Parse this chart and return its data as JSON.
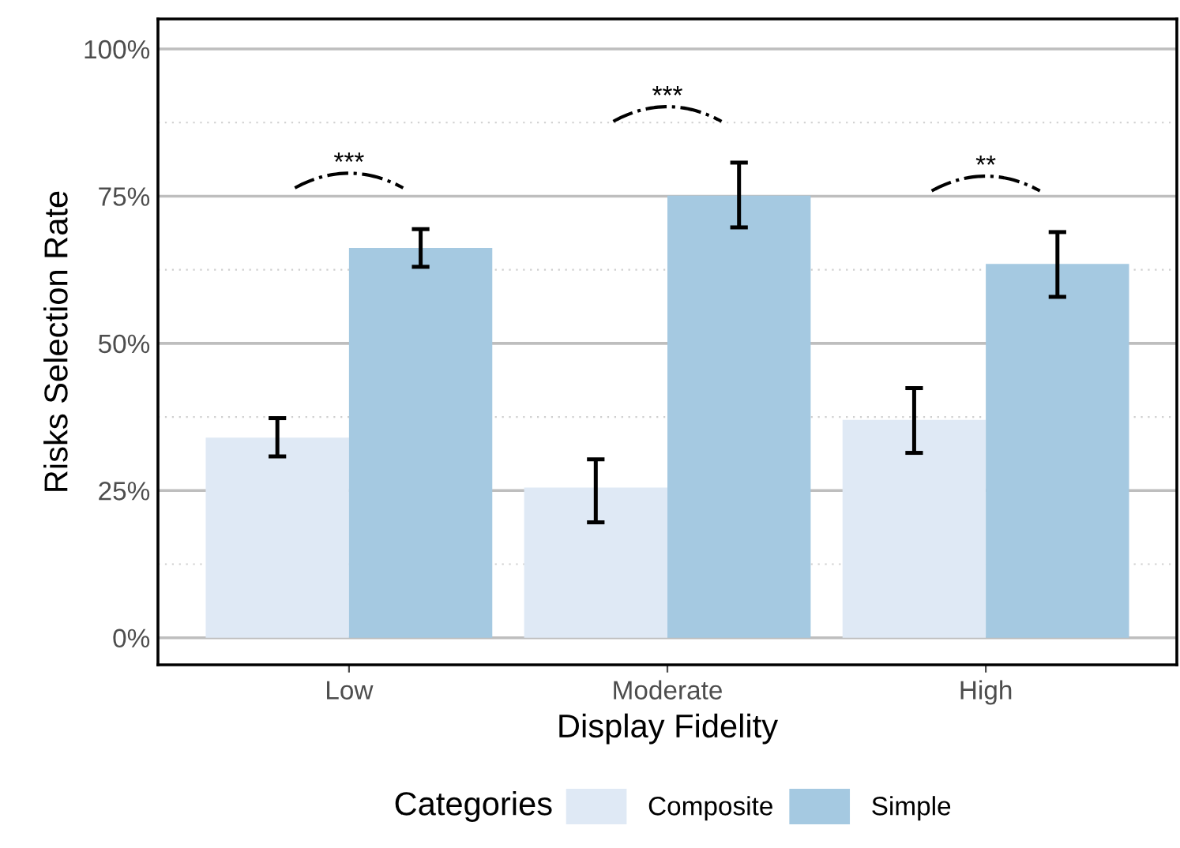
{
  "chart_data": {
    "type": "bar",
    "xlabel": "Display Fidelity",
    "ylabel": "Risks Selection Rate",
    "legend_title": "Categories",
    "categories": [
      "Low",
      "Moderate",
      "High"
    ],
    "series": [
      {
        "name": "Composite",
        "color": "#dfe9f5",
        "values": [
          34.0,
          25.5,
          37.0
        ],
        "errors": [
          [
            30.8,
            37.3
          ],
          [
            19.6,
            30.3
          ],
          [
            31.4,
            42.4
          ]
        ]
      },
      {
        "name": "Simple",
        "color": "#a5c9e1",
        "values": [
          66.2,
          75.1,
          63.5
        ],
        "errors": [
          [
            63.0,
            69.4
          ],
          [
            69.7,
            80.7
          ],
          [
            57.9,
            68.9
          ]
        ]
      }
    ],
    "ylim": [
      -4.6,
      105.1
    ],
    "yticks": [
      {
        "value": 0,
        "label": "0%"
      },
      {
        "value": 12.5,
        "label": null
      },
      {
        "value": 25,
        "label": "25%"
      },
      {
        "value": 37.5,
        "label": null
      },
      {
        "value": 50,
        "label": "50%"
      },
      {
        "value": 62.5,
        "label": null
      },
      {
        "value": 75,
        "label": "75%"
      },
      {
        "value": 87.5,
        "label": null
      },
      {
        "value": 100,
        "label": "100%"
      }
    ],
    "grid": "y",
    "legend": "bottom",
    "annotations": [
      "***",
      "***",
      "**"
    ]
  }
}
